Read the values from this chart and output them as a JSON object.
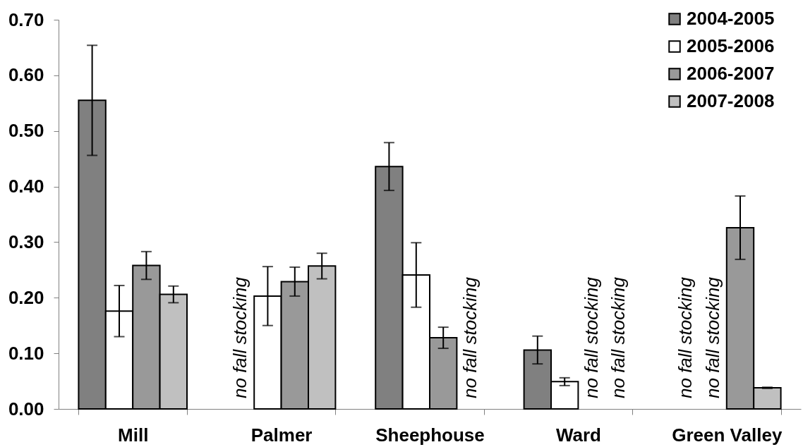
{
  "chart_data": {
    "type": "bar",
    "categories": [
      "Mill",
      "Palmer",
      "Sheephouse",
      "Ward",
      "Green Valley"
    ],
    "series": [
      {
        "name": "2004-2005",
        "color": "#808080",
        "values": [
          0.555,
          null,
          0.436,
          0.106,
          null
        ],
        "errors": [
          0.099,
          null,
          0.043,
          0.025,
          null
        ],
        "value_labels": [
          null,
          "no fall stocking",
          null,
          null,
          "no fall stocking"
        ]
      },
      {
        "name": "2005-2006",
        "color": "#ffffff",
        "values": [
          0.176,
          0.203,
          0.241,
          0.049,
          null
        ],
        "errors": [
          0.046,
          0.053,
          0.058,
          0.007,
          null
        ],
        "value_labels": [
          null,
          null,
          null,
          null,
          "no fall stocking"
        ]
      },
      {
        "name": "2006-2007",
        "color": "#999999",
        "values": [
          0.258,
          0.229,
          0.128,
          null,
          0.326
        ],
        "errors": [
          0.025,
          0.026,
          0.019,
          null,
          0.057
        ],
        "value_labels": [
          null,
          null,
          null,
          "no fall stocking",
          null
        ]
      },
      {
        "name": "2007-2008",
        "color": "#c0c0c0",
        "values": [
          0.206,
          0.257,
          null,
          null,
          0.038
        ],
        "errors": [
          0.015,
          0.023,
          null,
          null,
          0.001
        ],
        "value_labels": [
          null,
          null,
          "no fall stocking",
          "no fall stocking",
          null
        ]
      }
    ],
    "ylim": [
      0,
      0.7
    ],
    "yticks": [
      {
        "value": 0,
        "label": "0.00"
      },
      {
        "value": 0.1,
        "label": "0.10"
      },
      {
        "value": 0.2,
        "label": "0.20"
      },
      {
        "value": 0.3,
        "label": "0.30"
      },
      {
        "value": 0.4,
        "label": "0.40"
      },
      {
        "value": 0.5,
        "label": "0.50"
      },
      {
        "value": 0.6,
        "label": "0.60"
      },
      {
        "value": 0.7,
        "label": "0.70"
      }
    ],
    "legend": "top right"
  }
}
